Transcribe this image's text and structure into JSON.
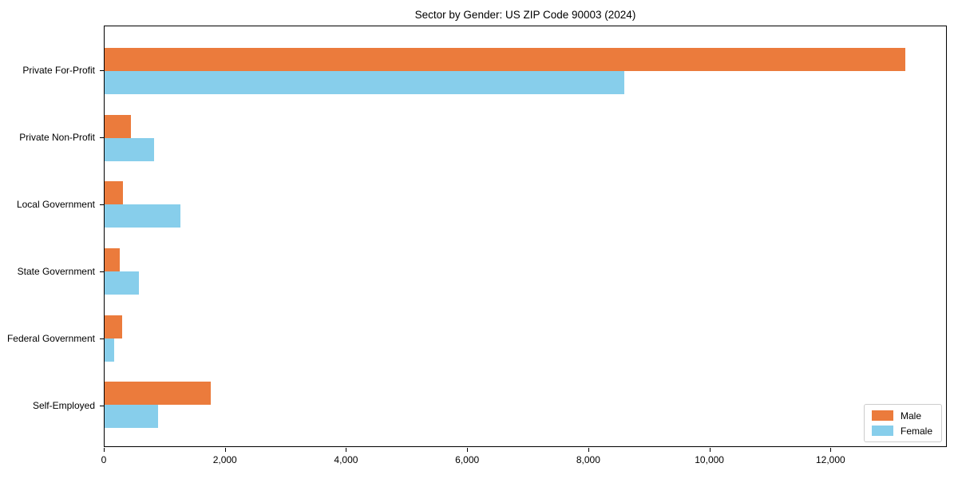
{
  "chart_data": {
    "type": "bar",
    "orientation": "horizontal",
    "title": "Sector by Gender: US ZIP Code 90003 (2024)",
    "categories": [
      "Private For-Profit",
      "Private Non-Profit",
      "Local Government",
      "State Government",
      "Federal Government",
      "Self-Employed"
    ],
    "series": [
      {
        "name": "Male",
        "color": "#eb7b3c",
        "values": [
          13250,
          430,
          300,
          250,
          290,
          1750
        ]
      },
      {
        "name": "Female",
        "color": "#87ceeb",
        "values": [
          8600,
          820,
          1250,
          570,
          160,
          880
        ]
      }
    ],
    "xlim": [
      0,
      13920
    ],
    "xticks": [
      0,
      2000,
      4000,
      6000,
      8000,
      10000,
      12000
    ],
    "xtick_labels": [
      "0",
      "2,000",
      "4,000",
      "6,000",
      "8,000",
      "10,000",
      "12,000"
    ],
    "xlabel": "",
    "ylabel": "",
    "grid": false,
    "legend_position": "lower right",
    "legend_labels": [
      "Male",
      "Female"
    ]
  }
}
